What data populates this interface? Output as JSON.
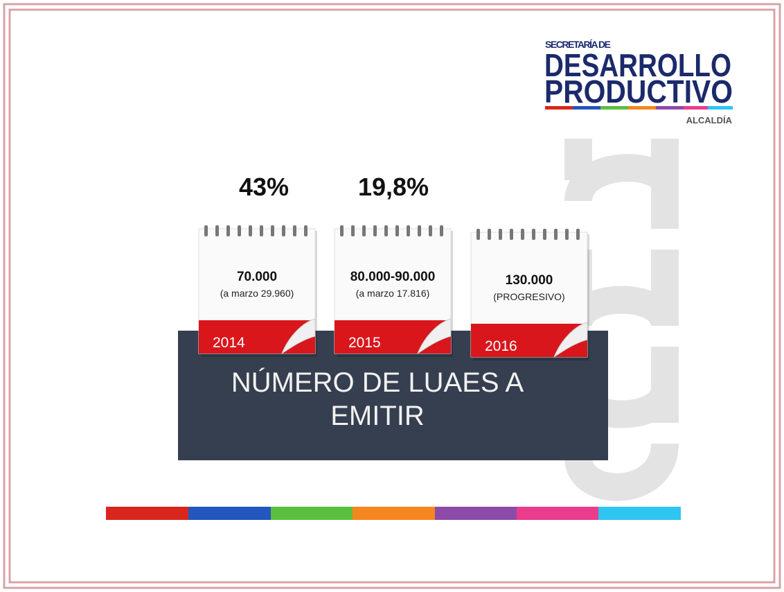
{
  "logo": {
    "line1": "SECRETARÍA DE",
    "line2": "DESARROLLO",
    "line3": "PRODUCTIVO",
    "line4": "ALCALDÍA"
  },
  "percentages": [
    "43%",
    "19,8%"
  ],
  "calendars": [
    {
      "value": "70.000",
      "note": "(a marzo 29.960)",
      "year": "2014"
    },
    {
      "value": "80.000-90.000",
      "note": "(a marzo 17.816)",
      "year": "2015"
    },
    {
      "value": "130.000",
      "note": "(PROGRESIVO)",
      "year": "2016"
    }
  ],
  "banner": {
    "line1": "NÚMERO DE LUAES A",
    "line2": "EMITIR"
  }
}
